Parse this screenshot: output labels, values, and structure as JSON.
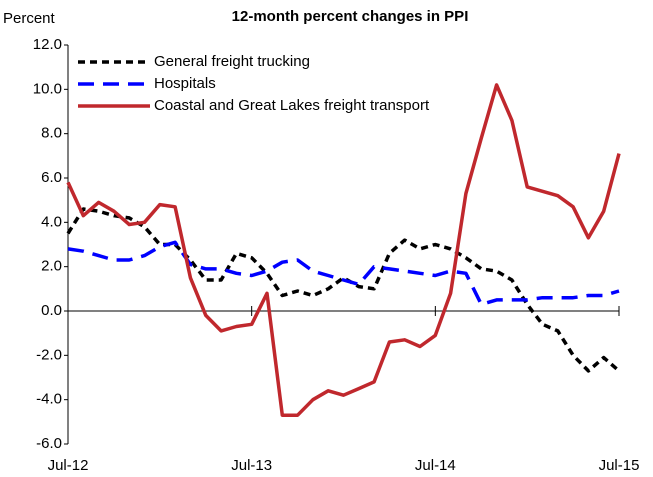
{
  "chart_data": {
    "type": "line",
    "title": "12-month percent changes in PPI",
    "y_label": "Percent",
    "categories": [
      "Jul-12",
      null,
      null,
      null,
      null,
      null,
      null,
      null,
      null,
      null,
      null,
      null,
      "Jul-13",
      null,
      null,
      null,
      null,
      null,
      null,
      null,
      null,
      null,
      null,
      null,
      "Jul-14",
      null,
      null,
      null,
      null,
      null,
      null,
      null,
      null,
      null,
      null,
      null,
      "Jul-15"
    ],
    "series": [
      {
        "name": "General freight trucking",
        "color": "#000000",
        "line_style": "dashed",
        "values": [
          3.5,
          4.6,
          4.5,
          4.3,
          4.2,
          3.8,
          3.0,
          3.0,
          2.3,
          1.4,
          1.4,
          2.6,
          2.4,
          1.7,
          0.7,
          0.9,
          0.7,
          1.0,
          1.5,
          1.1,
          1.0,
          2.6,
          3.2,
          2.8,
          3.0,
          2.8,
          2.4,
          1.9,
          1.8,
          1.4,
          0.3,
          -0.6,
          -0.9,
          -2.0,
          -2.7,
          -2.1,
          -2.7
        ]
      },
      {
        "name": "Hospitals",
        "color": "#0000ff",
        "line_style": "long-dashed",
        "values": [
          2.8,
          2.7,
          2.5,
          2.3,
          2.3,
          2.5,
          2.9,
          3.1,
          2.1,
          1.9,
          1.9,
          1.7,
          1.6,
          1.8,
          2.2,
          2.3,
          1.8,
          1.6,
          1.4,
          1.2,
          2.0,
          1.9,
          1.8,
          1.7,
          1.6,
          1.8,
          1.7,
          0.3,
          0.5,
          0.5,
          0.5,
          0.6,
          0.6,
          0.6,
          0.7,
          0.7,
          0.9
        ]
      },
      {
        "name": "Coastal and Great Lakes freight transport",
        "color": "#c0282d",
        "line_style": "solid",
        "values": [
          5.8,
          4.3,
          4.9,
          4.5,
          3.9,
          4.0,
          4.8,
          4.7,
          1.5,
          -0.2,
          -0.9,
          -0.7,
          -0.6,
          0.8,
          -4.7,
          -4.7,
          -4.0,
          -3.6,
          -3.8,
          -3.5,
          -3.2,
          -1.4,
          -1.3,
          -1.6,
          -1.1,
          0.8,
          5.3,
          7.8,
          10.2,
          8.6,
          5.6,
          5.4,
          5.2,
          4.7,
          3.3,
          4.5,
          7.1
        ]
      }
    ],
    "ylim": [
      -6,
      12
    ],
    "yticks": [
      {
        "value": -6,
        "label": "-6.0"
      },
      {
        "value": -4,
        "label": "-4.0"
      },
      {
        "value": -2,
        "label": "-2.0"
      },
      {
        "value": 0,
        "label": "0.0"
      },
      {
        "value": 2,
        "label": "2.0"
      },
      {
        "value": 4,
        "label": "4.0"
      },
      {
        "value": 6,
        "label": "6.0"
      },
      {
        "value": 8,
        "label": "8.0"
      },
      {
        "value": 10,
        "label": "10.0"
      },
      {
        "value": 12,
        "label": "12.0"
      }
    ],
    "grid": false,
    "legend": "upper left"
  }
}
